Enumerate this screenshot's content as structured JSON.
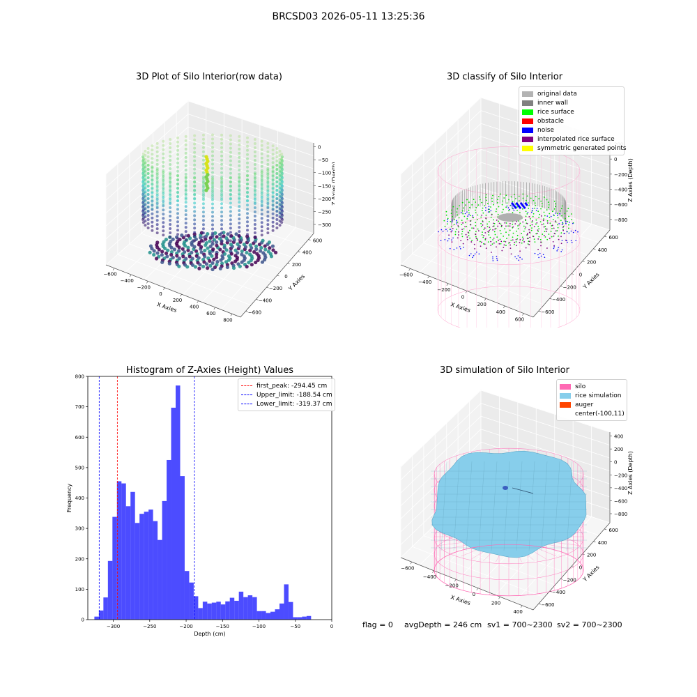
{
  "suptitle": "BRCSD03 2026-05-11 13:25:36",
  "panels": {
    "raw": {
      "title": "3D Plot of Silo Interior(row data)",
      "xlabel": "X Axies",
      "ylabel": "Y Axies",
      "zlabel": "Z Axies (Depth)",
      "xticks": [
        "−600",
        "−400",
        "−200",
        "0",
        "200",
        "400",
        "600",
        "800"
      ],
      "yticks": [
        "−600",
        "−400",
        "−200",
        "0",
        "200",
        "400",
        "600"
      ],
      "zticks": [
        "0",
        "−50",
        "−100",
        "−150",
        "−200",
        "−250",
        "−300"
      ]
    },
    "classify": {
      "title": "3D classify of Silo Interior",
      "xlabel": "X Axies",
      "ylabel": "Y Axies",
      "zlabel": "Z Axies (Depth)",
      "xticks": [
        "−600",
        "−400",
        "−200",
        "0",
        "200",
        "400",
        "600"
      ],
      "yticks": [
        "−600",
        "−400",
        "−200",
        "0",
        "200",
        "400",
        "600"
      ],
      "zticks": [
        "200",
        "0",
        "−200",
        "−400",
        "−600",
        "−800"
      ],
      "legend": [
        {
          "label": "original data",
          "color": "#b3b3b3"
        },
        {
          "label": "inner wall",
          "color": "#808080"
        },
        {
          "label": "rice surface",
          "color": "#00ff00"
        },
        {
          "label": "obstacle",
          "color": "#ff0000"
        },
        {
          "label": "noise",
          "color": "#0000ff"
        },
        {
          "label": "interpolated rice surface",
          "color": "#800080"
        },
        {
          "label": "symmetric generated points",
          "color": "#ffff00"
        }
      ]
    },
    "simulation": {
      "title": "3D simulation of Silo Interior",
      "xlabel": "X Axies",
      "ylabel": "Y Axies",
      "zlabel": "Z Axies (Depth)",
      "xticks": [
        "−600",
        "−400",
        "−200",
        "0",
        "200",
        "400"
      ],
      "yticks": [
        "−600",
        "−400",
        "−200",
        "0",
        "200",
        "400",
        "600"
      ],
      "zticks": [
        "400",
        "200",
        "0",
        "−200",
        "−400",
        "−600",
        "−800"
      ],
      "legend": [
        {
          "label": "silo",
          "color": "#ff69b4"
        },
        {
          "label": "rice simulation",
          "color": "#87ceeb"
        },
        {
          "label": "auger",
          "color": "#ff4500"
        },
        {
          "label": "center(-100,11)",
          "color": "#ffffff"
        }
      ]
    }
  },
  "footer": {
    "flag": "flag = 0",
    "avg": "avgDepth = 246 cm",
    "sv1": "sv1 = 700~2300",
    "sv2": "sv2 = 700~2300"
  },
  "chart_data": {
    "type": "bar",
    "title": "Histogram of Z-Axies (Height) Values",
    "xlabel": "Depth (cm)",
    "ylabel": "Frequency",
    "bar_color": "#0000ff",
    "xlim": [
      -335,
      0
    ],
    "ylim": [
      0,
      800
    ],
    "xticks": [
      -300,
      -250,
      -200,
      -150,
      -100,
      -50,
      0
    ],
    "xtick_labels": [
      "−300",
      "−250",
      "−200",
      "−150",
      "−100",
      "−50",
      "0"
    ],
    "yticks": [
      0,
      100,
      200,
      300,
      400,
      500,
      600,
      700,
      800
    ],
    "ytick_labels": [
      "0",
      "100",
      "200",
      "300",
      "400",
      "500",
      "600",
      "700",
      "800"
    ],
    "bin_start": -326,
    "bin_width": 6.2,
    "values": [
      10,
      30,
      73,
      193,
      338,
      455,
      448,
      373,
      420,
      318,
      348,
      355,
      362,
      324,
      262,
      390,
      525,
      697,
      770,
      472,
      160,
      122,
      77,
      38,
      59,
      53,
      56,
      59,
      50,
      60,
      72,
      62,
      92,
      74,
      80,
      74,
      28,
      28,
      22,
      26,
      34,
      53,
      116,
      58,
      8,
      8,
      10,
      12
    ],
    "vlines": [
      {
        "label": "first_peak: -294.45 cm",
        "x": -294.45,
        "color": "#ff0000"
      },
      {
        "label": "Upper_limit: -188.54 cm",
        "x": -188.54,
        "color": "#0000ff"
      },
      {
        "label": "Lower_limit: -319.37 cm",
        "x": -319.37,
        "color": "#0000ff"
      }
    ],
    "legend_position": "upper right"
  }
}
